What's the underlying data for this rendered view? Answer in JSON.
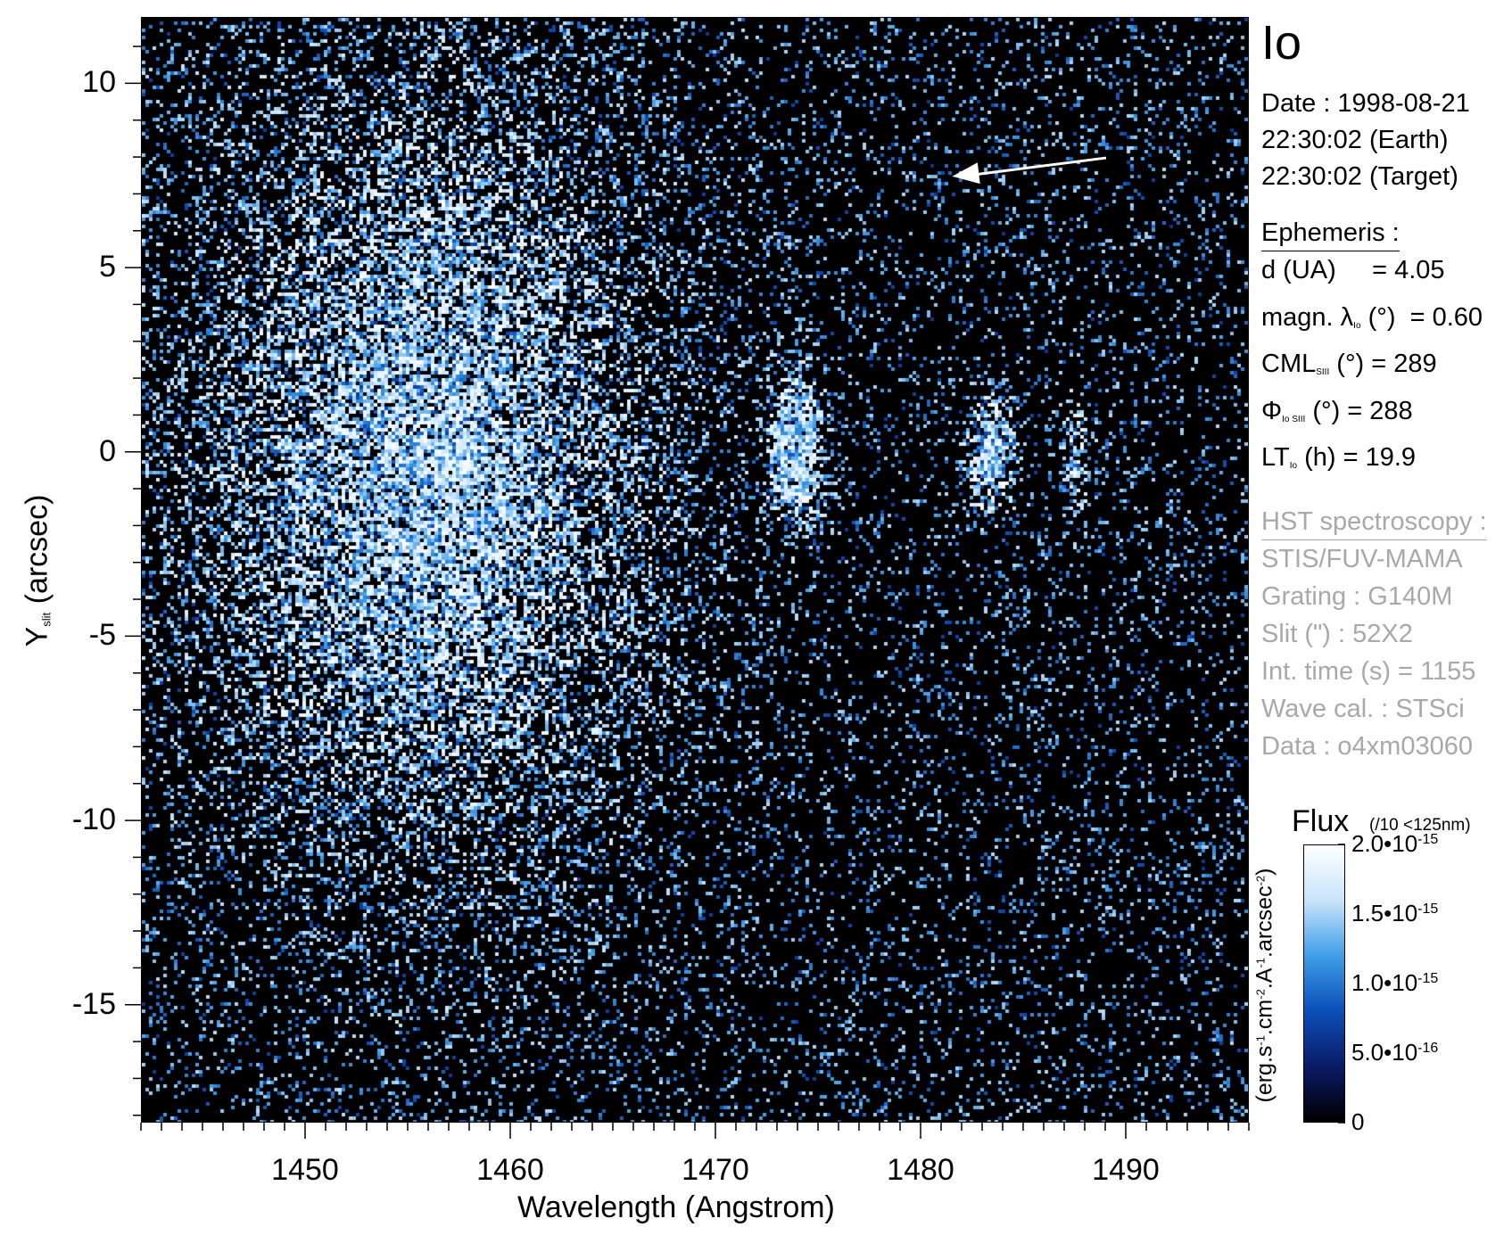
{
  "chart_data": {
    "type": "heatmap",
    "xlabel": "Wavelength (Angstrom)",
    "ylabel_main": "Y",
    "ylabel_sub": "slit",
    "ylabel_rest": " (arcsec)",
    "xlim": [
      1442,
      1496
    ],
    "ylim": [
      -18.2,
      11.8
    ],
    "x_ticks": [
      1450,
      1460,
      1470,
      1480,
      1490
    ],
    "x_tick_labels": [
      "1450",
      "1460",
      "1470",
      "1480",
      "1490"
    ],
    "y_ticks": [
      10,
      5,
      0,
      -5,
      -10,
      -15
    ],
    "y_tick_labels": [
      "10",
      "5",
      "0",
      "-5",
      "-10",
      "-15"
    ],
    "colormap": [
      "#000000",
      "#0a1a66",
      "#0a4fb8",
      "#3f9ee8",
      "#c8e4fb",
      "#ffffff"
    ],
    "emission_features": [
      {
        "x": 1456,
        "y": -0.5,
        "sx": 7,
        "sy": 6.5,
        "amplitude": 0.75
      },
      {
        "x": 1473.9,
        "y": 0,
        "sx": 0.75,
        "sy": 1.2,
        "amplitude": 1.4
      },
      {
        "x": 1483.4,
        "y": 0,
        "sx": 0.7,
        "sy": 1.0,
        "amplitude": 1.0
      },
      {
        "x": 1487.6,
        "y": -0.2,
        "sx": 0.5,
        "sy": 1.0,
        "amplitude": 0.55
      }
    ],
    "arrow": {
      "from": [
        1489,
        8
      ],
      "to": [
        1481.5,
        7.5
      ]
    }
  },
  "sidebar": {
    "target": "Io",
    "date_lines": [
      "Date : 1998-08-21",
      "22:30:02 (Earth)",
      "22:30:02 (Target)"
    ],
    "ephemeris_head": "Ephemeris :",
    "ephemeris": [
      {
        "main": "d (UA)",
        "sub": "",
        "rest": "     = 4.05"
      },
      {
        "main": "magn. λ",
        "sub": "Io",
        "rest": " (°)  = 0.60"
      },
      {
        "main": "CML",
        "sub": "SIII",
        "rest": " (°) = 289"
      },
      {
        "main": "Φ",
        "sub": "Io SIII",
        "rest": " (°) = 288"
      },
      {
        "main": "LT",
        "sub": "Io",
        "rest": " (h) = 19.9"
      }
    ],
    "hst_head": "HST spectroscopy :",
    "hst": [
      "STIS/FUV-MAMA",
      "Grating : G140M",
      "Slit (\") : 52X2",
      "Int. time (s) = 1155",
      "Wave cal. : STSci",
      "Data : o4xm03060"
    ]
  },
  "colorbar": {
    "title": "Flux",
    "note": "(/10 <125nm)",
    "units_html": "(erg.s-1.cm-2.A-1.arcsec-2)",
    "range": [
      0,
      2e-15
    ],
    "ticks": [
      {
        "value": 2e-15,
        "base": "2.0•10",
        "exp": "-15"
      },
      {
        "value": 1.5e-15,
        "base": "1.5•10",
        "exp": "-15"
      },
      {
        "value": 1e-15,
        "base": "1.0•10",
        "exp": "-15"
      },
      {
        "value": 5e-16,
        "base": "5.0•10",
        "exp": "-16"
      },
      {
        "value": 0,
        "base": "0",
        "exp": ""
      }
    ]
  }
}
